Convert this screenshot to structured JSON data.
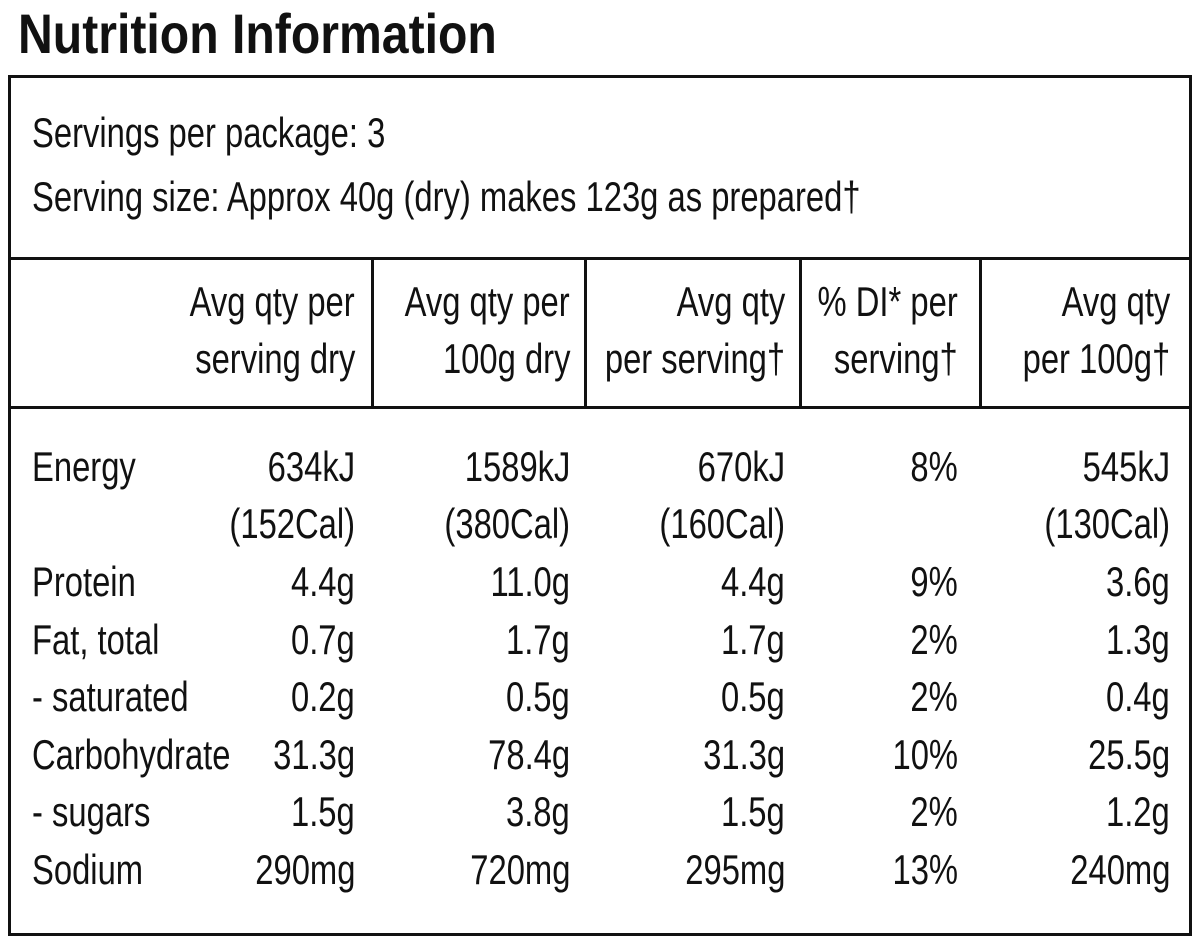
{
  "title": "Nutrition Information",
  "servings": {
    "per_package": "Servings per package: 3",
    "serving_size": "Serving size: Approx 40g (dry) makes 123g as prepared†"
  },
  "table": {
    "headers": [
      [
        "Avg qty per",
        "serving dry"
      ],
      [
        "Avg qty per",
        "100g dry"
      ],
      [
        "Avg qty",
        "per serving†"
      ],
      [
        "% DI* per",
        "serving†"
      ],
      [
        "Avg qty",
        "per 100g†"
      ]
    ],
    "rows": [
      {
        "label": "Energy",
        "values": [
          [
            "634kJ",
            "(152Cal)"
          ],
          [
            "1589kJ",
            "(380Cal)"
          ],
          [
            "670kJ",
            "(160Cal)"
          ],
          [
            "8%"
          ],
          [
            "545kJ",
            "(130Cal)"
          ]
        ]
      },
      {
        "label": "Protein",
        "values": [
          [
            "4.4g"
          ],
          [
            "11.0g"
          ],
          [
            "4.4g"
          ],
          [
            "9%"
          ],
          [
            "3.6g"
          ]
        ]
      },
      {
        "label": "Fat, total",
        "values": [
          [
            "0.7g"
          ],
          [
            "1.7g"
          ],
          [
            "1.7g"
          ],
          [
            "2%"
          ],
          [
            "1.3g"
          ]
        ]
      },
      {
        "label": "- saturated",
        "values": [
          [
            "0.2g"
          ],
          [
            "0.5g"
          ],
          [
            "0.5g"
          ],
          [
            "2%"
          ],
          [
            "0.4g"
          ]
        ]
      },
      {
        "label": "Carbohydrate",
        "values": [
          [
            "31.3g"
          ],
          [
            "78.4g"
          ],
          [
            "31.3g"
          ],
          [
            "10%"
          ],
          [
            "25.5g"
          ]
        ]
      },
      {
        "label": "- sugars",
        "values": [
          [
            "1.5g"
          ],
          [
            "3.8g"
          ],
          [
            "1.5g"
          ],
          [
            "2%"
          ],
          [
            "1.2g"
          ]
        ]
      },
      {
        "label": "Sodium",
        "values": [
          [
            "290mg"
          ],
          [
            "720mg"
          ],
          [
            "295mg"
          ],
          [
            "13%"
          ],
          [
            "240mg"
          ]
        ]
      }
    ]
  }
}
